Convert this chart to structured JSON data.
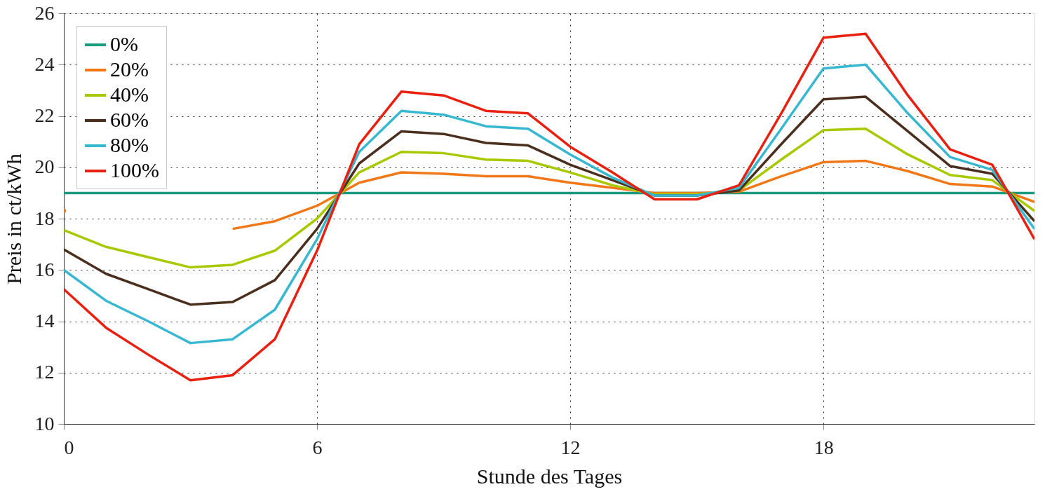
{
  "chart_data": {
    "type": "line",
    "xlabel": "Stunde des Tages",
    "ylabel": "Preis in ct/kWh",
    "x": [
      0,
      1,
      2,
      3,
      4,
      5,
      6,
      7,
      8,
      9,
      10,
      11,
      12,
      13,
      14,
      15,
      16,
      17,
      18,
      19,
      20,
      21,
      22,
      23
    ],
    "xlim": [
      0,
      23
    ],
    "xticks": [
      0,
      6,
      12,
      18
    ],
    "ylim": [
      10,
      26
    ],
    "yticks": [
      10,
      12,
      14,
      16,
      18,
      20,
      22,
      24,
      26
    ],
    "grid": true,
    "legend": "top left",
    "marker": "none",
    "line_style": "solid",
    "series": [
      {
        "name": "0%",
        "color": "#1a9a7e",
        "values": [
          19,
          19,
          19,
          19,
          19,
          19,
          19,
          19,
          19,
          19,
          19,
          19,
          19,
          19,
          19,
          19,
          19,
          19,
          19,
          19,
          19,
          19,
          19,
          19
        ]
      },
      {
        "name": "20%",
        "color": "#f07818",
        "values": [
          18.3,
          null,
          null,
          null,
          17.6,
          17.9,
          18.5,
          19.4,
          19.8,
          19.75,
          19.65,
          19.65,
          19.4,
          19.2,
          19.0,
          19.0,
          19.05,
          19.65,
          20.2,
          20.25,
          19.85,
          19.35,
          19.25,
          18.65
        ]
      },
      {
        "name": "40%",
        "color": "#a8c800",
        "values": [
          17.55,
          16.9,
          16.5,
          16.1,
          16.2,
          16.75,
          18.0,
          19.8,
          20.6,
          20.55,
          20.3,
          20.25,
          19.8,
          19.3,
          18.95,
          18.95,
          19.1,
          20.3,
          21.45,
          21.5,
          20.5,
          19.7,
          19.5,
          18.3
        ]
      },
      {
        "name": "60%",
        "color": "#4a2e1e",
        "values": [
          16.8,
          15.85,
          15.25,
          14.65,
          14.75,
          15.6,
          17.6,
          20.15,
          21.4,
          21.3,
          20.95,
          20.85,
          20.1,
          19.5,
          18.9,
          18.9,
          19.1,
          20.9,
          22.65,
          22.75,
          21.4,
          20.05,
          19.75,
          17.9
        ]
      },
      {
        "name": "80%",
        "color": "#38b8d0",
        "values": [
          16.0,
          14.8,
          14.0,
          13.15,
          13.3,
          14.45,
          17.2,
          20.6,
          22.2,
          22.05,
          21.6,
          21.5,
          20.5,
          19.6,
          18.9,
          18.9,
          19.2,
          21.5,
          23.85,
          24.0,
          22.1,
          20.4,
          19.9,
          17.6
        ]
      },
      {
        "name": "100%",
        "color": "#e82010",
        "values": [
          15.25,
          13.75,
          12.7,
          11.7,
          11.9,
          13.3,
          16.75,
          20.9,
          22.95,
          22.8,
          22.2,
          22.1,
          20.8,
          19.8,
          18.75,
          18.75,
          19.3,
          22.1,
          25.05,
          25.2,
          22.8,
          20.7,
          20.1,
          17.2
        ]
      }
    ]
  }
}
